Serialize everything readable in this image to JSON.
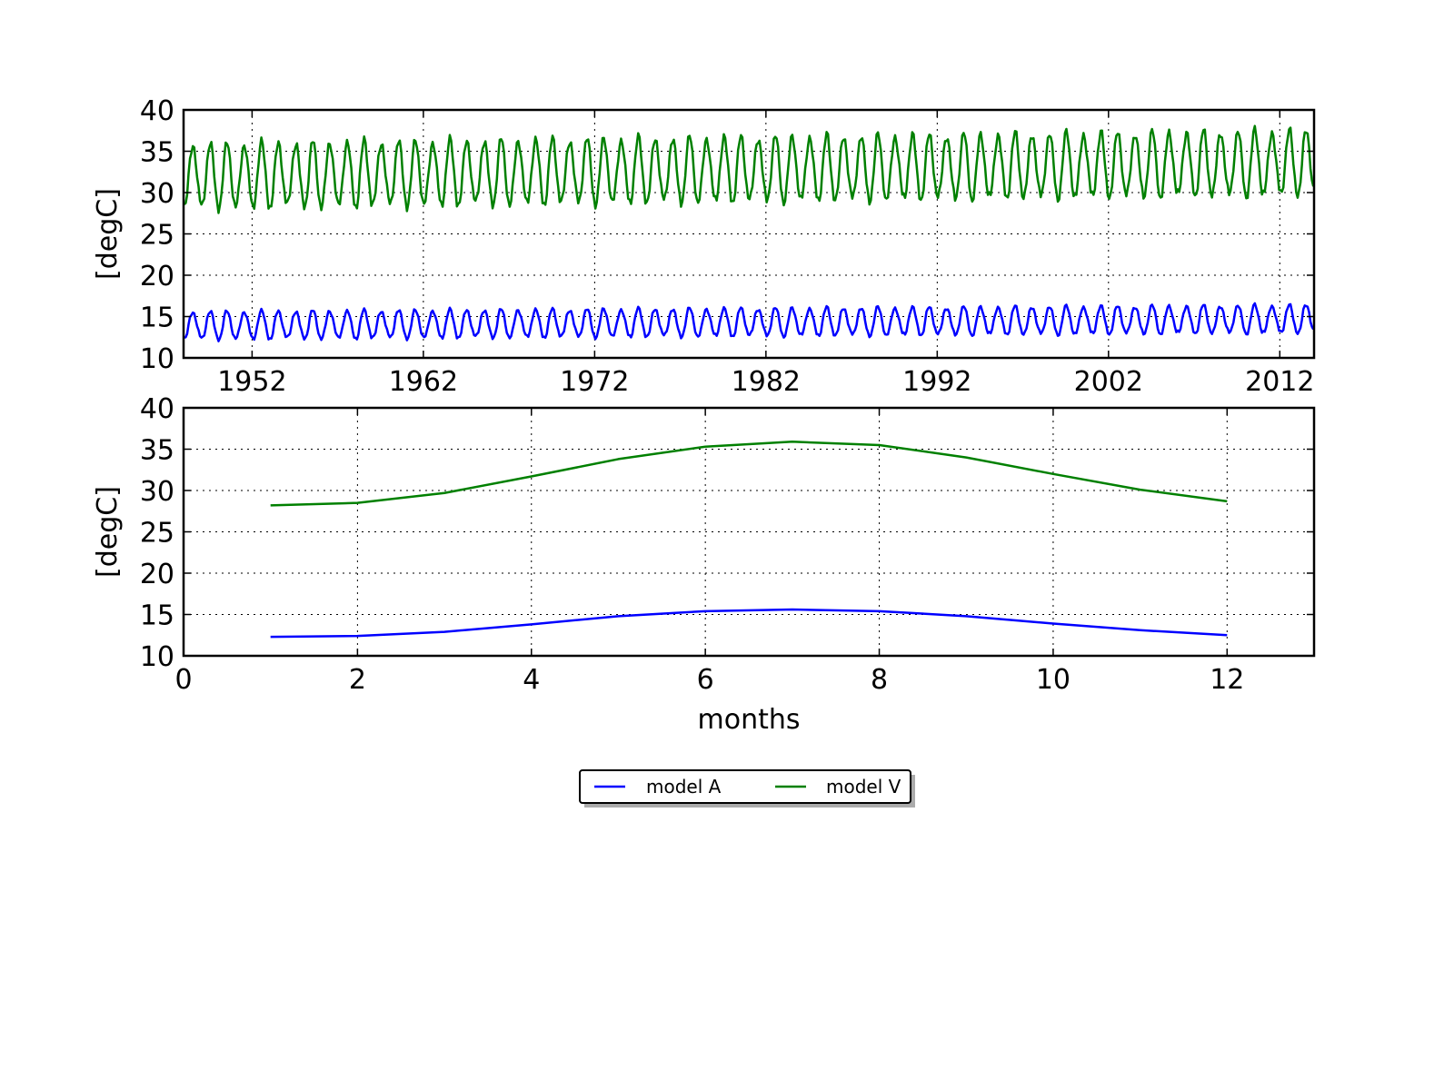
{
  "colors": {
    "model_A": "#0000ff",
    "model_V": "#008000"
  },
  "legend": {
    "placement": "below plots, centered",
    "entries": [
      {
        "label": "model A",
        "color": "#0000ff"
      },
      {
        "label": "model V",
        "color": "#008000"
      }
    ]
  },
  "chart_data": [
    {
      "type": "line",
      "title": "",
      "xlabel": "",
      "ylabel": "[degC]",
      "xlim": [
        1948.0,
        2014.0
      ],
      "ylim": [
        10,
        40
      ],
      "xticks": [
        1952,
        1962,
        1972,
        1982,
        1992,
        2002,
        2012
      ],
      "xtick_labels": [
        "1952",
        "1962",
        "1972",
        "1982",
        "1992",
        "2002",
        "2012"
      ],
      "yticks": [
        10,
        15,
        20,
        25,
        30,
        35,
        40
      ],
      "ytick_labels": [
        "10",
        "15",
        "20",
        "25",
        "30",
        "35",
        "40"
      ],
      "grid": true,
      "x_start_year": 1948,
      "years": 66,
      "series": [
        {
          "name": "model A",
          "color": "#0000ff",
          "seasonal_cycle": [
            12.3,
            12.4,
            12.9,
            13.8,
            14.8,
            15.4,
            15.6,
            15.4,
            14.8,
            13.9,
            13.1,
            12.5
          ],
          "trend_per_decade": 0.12
        },
        {
          "name": "model V",
          "color": "#008000",
          "seasonal_cycle": [
            28.2,
            28.5,
            29.7,
            31.7,
            33.8,
            35.3,
            35.9,
            35.5,
            34.0,
            32.0,
            30.1,
            28.7
          ],
          "trend_per_decade": 0.25
        }
      ]
    },
    {
      "type": "line",
      "title": "",
      "xlabel": "months",
      "ylabel": "[degC]",
      "xlim": [
        0,
        13
      ],
      "ylim": [
        10,
        40
      ],
      "xticks": [
        0,
        2,
        4,
        6,
        8,
        10,
        12
      ],
      "xtick_labels": [
        "0",
        "2",
        "4",
        "6",
        "8",
        "10",
        "12"
      ],
      "yticks": [
        10,
        15,
        20,
        25,
        30,
        35,
        40
      ],
      "ytick_labels": [
        "10",
        "15",
        "20",
        "25",
        "30",
        "35",
        "40"
      ],
      "grid": true,
      "x": [
        1,
        2,
        3,
        4,
        5,
        6,
        7,
        8,
        9,
        10,
        11,
        12
      ],
      "series": [
        {
          "name": "model A",
          "color": "#0000ff",
          "values": [
            12.3,
            12.4,
            12.9,
            13.8,
            14.8,
            15.4,
            15.6,
            15.4,
            14.8,
            13.9,
            13.1,
            12.5
          ]
        },
        {
          "name": "model V",
          "color": "#008000",
          "values": [
            28.2,
            28.5,
            29.7,
            31.7,
            33.8,
            35.3,
            35.9,
            35.5,
            34.0,
            32.0,
            30.1,
            28.7
          ]
        }
      ]
    }
  ]
}
